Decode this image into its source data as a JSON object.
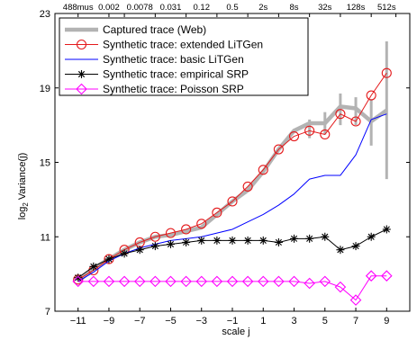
{
  "chart_data": {
    "type": "line",
    "xlabel": "scale j",
    "ylabel_main": "log",
    "ylabel_sub": "2",
    "ylabel_rest": " Variance(j)",
    "xlim": [
      -12.5,
      10.5
    ],
    "ylim": [
      7,
      23
    ],
    "x_ticks": [
      -11,
      -9,
      -7,
      -5,
      -3,
      -1,
      1,
      3,
      5,
      7,
      9
    ],
    "x_tick_labels": [
      "−11",
      "−9",
      "−7",
      "−5",
      "−3",
      "−1",
      "1",
      "3",
      "5",
      "7",
      "9"
    ],
    "y_ticks": [
      7,
      11,
      15,
      19,
      23
    ],
    "y_tick_labels": [
      "7",
      "11",
      "15",
      "19",
      "23"
    ],
    "top_ticks": [
      -11,
      -9,
      -8,
      -6,
      -4,
      -2,
      0,
      2,
      4,
      6,
      8,
      9.6
    ],
    "top_tick_labels": [
      "488mus",
      "0.002",
      "0.0078",
      "0.031",
      "0.12",
      "0.5",
      "2s",
      "8s",
      "32s",
      "128s",
      "512s"
    ],
    "top_label_positions": [
      -11,
      -9,
      -7,
      -5,
      -3,
      -1,
      1,
      3,
      5,
      7,
      9
    ],
    "x": [
      -11,
      -10,
      -9,
      -8,
      -7,
      -6,
      -5,
      -4,
      -3,
      -2,
      -1,
      0,
      1,
      2,
      3,
      4,
      5,
      6,
      7,
      8,
      9
    ],
    "series": [
      {
        "name": "Captured trace (Web)",
        "color": "#b3b3b3",
        "marker": "none",
        "width": 4.5,
        "values": [
          8.6,
          9.3,
          9.8,
          10.3,
          10.7,
          11.0,
          11.1,
          11.3,
          11.5,
          12.2,
          12.9,
          13.5,
          14.5,
          15.7,
          16.7,
          17.1,
          17.1,
          18.0,
          17.9,
          17.2,
          17.8
        ],
        "errorbars": [
          {
            "x": 4,
            "low": 16.3,
            "high": 17.3
          },
          {
            "x": 5,
            "low": 16.5,
            "high": 17.7
          },
          {
            "x": 6,
            "low": 17.0,
            "high": 18.7
          },
          {
            "x": 7,
            "low": 17.0,
            "high": 18.5
          },
          {
            "x": 8,
            "low": 15.9,
            "high": 18.4
          },
          {
            "x": 9,
            "low": 14.1,
            "high": 21.5
          }
        ]
      },
      {
        "name": "Synthetic trace: extended LiTGen",
        "color": "#e41a1c",
        "marker": "circle",
        "width": 1,
        "values": [
          8.7,
          9.2,
          9.8,
          10.3,
          10.7,
          11.0,
          11.2,
          11.4,
          11.7,
          12.3,
          12.9,
          13.7,
          14.6,
          15.7,
          16.4,
          16.7,
          16.5,
          17.6,
          17.2,
          18.6,
          19.8
        ]
      },
      {
        "name": "Synthetic trace: basic LiTGen",
        "color": "#0000ff",
        "marker": "none",
        "width": 1,
        "values": [
          8.6,
          9.1,
          9.7,
          10.1,
          10.4,
          10.6,
          10.8,
          10.9,
          11.0,
          11.2,
          11.4,
          11.8,
          12.2,
          12.7,
          13.3,
          14.1,
          14.3,
          14.3,
          15.4,
          17.3,
          17.6
        ]
      },
      {
        "name": "Synthetic trace: empirical SRP",
        "color": "#000000",
        "marker": "star",
        "width": 1,
        "values": [
          8.8,
          9.4,
          9.8,
          10.1,
          10.3,
          10.5,
          10.6,
          10.7,
          10.8,
          10.8,
          10.8,
          10.8,
          10.8,
          10.7,
          10.9,
          10.9,
          11.0,
          10.3,
          10.5,
          11.0,
          11.4
        ]
      },
      {
        "name": "Synthetic trace: Poisson SRP",
        "color": "#ff00ff",
        "marker": "diamond",
        "width": 1,
        "values": [
          8.6,
          8.6,
          8.6,
          8.6,
          8.6,
          8.6,
          8.6,
          8.6,
          8.6,
          8.6,
          8.6,
          8.6,
          8.6,
          8.6,
          8.6,
          8.5,
          8.6,
          8.3,
          7.6,
          8.9,
          8.9
        ]
      }
    ],
    "legend_position": "top-left",
    "grid": false
  }
}
